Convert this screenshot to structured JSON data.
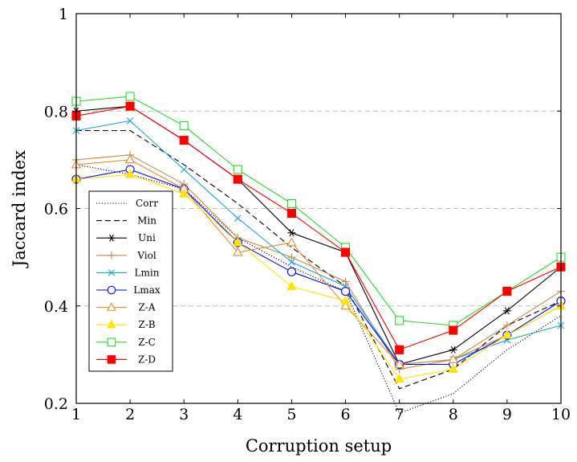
{
  "chart_data": {
    "type": "line",
    "xlabel": "Corruption setup",
    "ylabel": "Jaccard index",
    "x": [
      1,
      2,
      3,
      4,
      5,
      6,
      7,
      8,
      9,
      10
    ],
    "xlim": [
      1,
      10
    ],
    "ylim": [
      0.2,
      1.0
    ],
    "yticks": [
      0.2,
      0.4,
      0.6,
      0.8,
      1.0
    ],
    "ytick_labels": [
      "0.2",
      "0.4",
      "0.6",
      "0.8",
      "1"
    ],
    "xtick_labels": [
      "1",
      "2",
      "3",
      "4",
      "5",
      "6",
      "7",
      "8",
      "9",
      "10"
    ],
    "grid": "horizontal dashed at 0.4, 0.6, 0.8",
    "legend_position": "left, lower middle",
    "series": [
      {
        "name": "Corr",
        "color": "#000000",
        "style": "dotted",
        "marker": "none",
        "values": [
          0.69,
          0.67,
          0.64,
          0.54,
          0.48,
          0.43,
          0.18,
          0.22,
          0.31,
          0.38
        ]
      },
      {
        "name": "Min",
        "color": "#000000",
        "style": "dashed",
        "marker": "none",
        "values": [
          0.76,
          0.76,
          0.69,
          0.61,
          0.52,
          0.44,
          0.23,
          0.27,
          0.36,
          0.41
        ]
      },
      {
        "name": "Uni",
        "color": "#000000",
        "style": "solid",
        "marker": "asterisk",
        "values": [
          0.8,
          0.81,
          0.74,
          0.66,
          0.55,
          0.51,
          0.28,
          0.31,
          0.39,
          0.48
        ]
      },
      {
        "name": "Viol",
        "color": "#c68a4a",
        "style": "solid",
        "marker": "plus",
        "values": [
          0.7,
          0.71,
          0.65,
          0.54,
          0.5,
          0.45,
          0.27,
          0.29,
          0.36,
          0.43
        ]
      },
      {
        "name": "Lmin",
        "color": "#19a7d4",
        "style": "solid",
        "marker": "cross",
        "values": [
          0.76,
          0.78,
          0.68,
          0.58,
          0.49,
          0.44,
          0.28,
          0.29,
          0.33,
          0.36
        ]
      },
      {
        "name": "Lmax",
        "color": "#0000ff",
        "style": "solid",
        "marker": "circle",
        "values": [
          0.66,
          0.68,
          0.64,
          0.53,
          0.47,
          0.43,
          0.28,
          0.28,
          0.34,
          0.41
        ]
      },
      {
        "name": "Z-A",
        "color": "#e88b2e",
        "style": "solid",
        "marker": "triangle-open",
        "values": [
          0.69,
          0.7,
          0.64,
          0.51,
          0.53,
          0.4,
          0.28,
          0.29,
          0.34,
          0.4
        ]
      },
      {
        "name": "Z-B",
        "color": "#ffe600",
        "style": "solid",
        "marker": "triangle-filled",
        "values": [
          0.66,
          0.67,
          0.63,
          0.53,
          0.44,
          0.41,
          0.25,
          0.27,
          0.34,
          0.4
        ]
      },
      {
        "name": "Z-C",
        "color": "#22dd22",
        "style": "solid",
        "marker": "square-open",
        "values": [
          0.82,
          0.83,
          0.77,
          0.68,
          0.61,
          0.52,
          0.37,
          0.36,
          0.43,
          0.5
        ]
      },
      {
        "name": "Z-D",
        "color": "#ff0000",
        "style": "solid",
        "marker": "square-filled",
        "values": [
          0.79,
          0.81,
          0.74,
          0.66,
          0.59,
          0.51,
          0.31,
          0.35,
          0.43,
          0.48
        ]
      }
    ]
  }
}
